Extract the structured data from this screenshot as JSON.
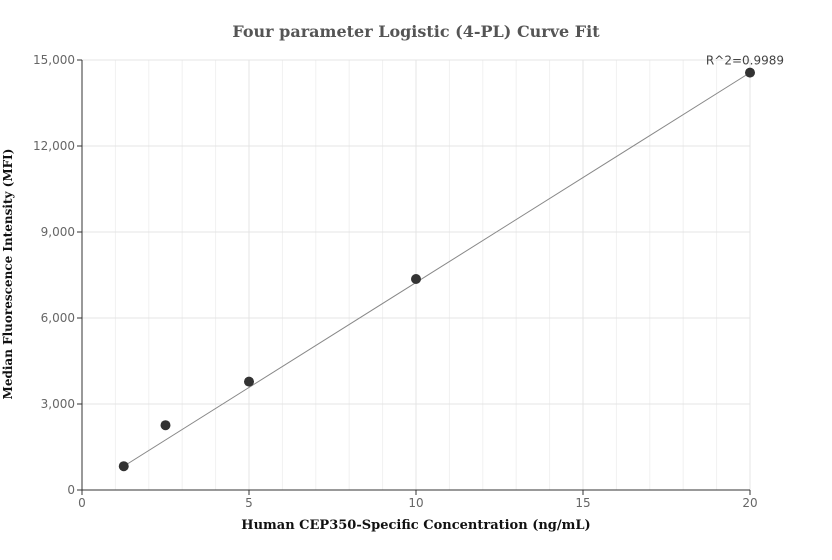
{
  "chart_data": {
    "type": "scatter",
    "title": "Four parameter Logistic (4-PL) Curve Fit",
    "xlabel": "Human CEP350-Specific Concentration (ng/mL)",
    "ylabel": "Median Fluorescence Intensity (MFI)",
    "xlim": [
      0,
      20
    ],
    "ylim": [
      0,
      15000
    ],
    "x_ticks": [
      0,
      5,
      10,
      15,
      20
    ],
    "x_tick_labels": [
      "0",
      "5",
      "10",
      "15",
      "20"
    ],
    "y_ticks": [
      0,
      3000,
      6000,
      9000,
      12000,
      15000
    ],
    "y_tick_labels": [
      "0",
      "3,000",
      "6,000",
      "9,000",
      "12,000",
      "15,000"
    ],
    "grid": true,
    "series": [
      {
        "points": [
          {
            "x": 1.25,
            "y": 830
          },
          {
            "x": 2.5,
            "y": 2260
          },
          {
            "x": 5,
            "y": 3780
          },
          {
            "x": 10,
            "y": 7360
          },
          {
            "x": 20,
            "y": 14560
          }
        ],
        "color": "#333333"
      }
    ],
    "fit_line": {
      "x": [
        1.25,
        20
      ],
      "y": [
        830,
        14560
      ],
      "color": "#888888"
    },
    "annotation": "R^2=0.9989"
  }
}
